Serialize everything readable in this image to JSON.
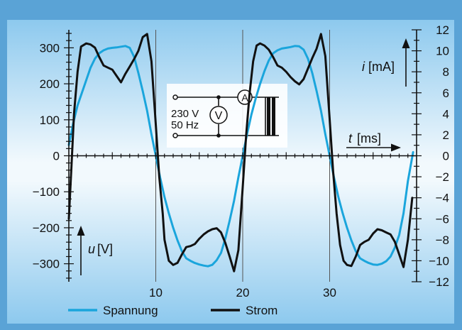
{
  "chart_data": {
    "type": "line",
    "x_axis": {
      "label_var": "t",
      "label_unit": "[ms]",
      "range": [
        0,
        40
      ],
      "ticks": [
        10,
        20,
        30
      ],
      "tick_labels": [
        "10",
        "20",
        "30"
      ]
    },
    "y_left": {
      "label_var": "u",
      "label_unit": "[V]",
      "range": [
        -350,
        350
      ],
      "ticks": [
        -300,
        -200,
        -100,
        0,
        100,
        200,
        300
      ],
      "tick_labels": [
        "−300",
        "−200",
        "−100",
        "0",
        "100",
        "200",
        "300"
      ]
    },
    "y_right": {
      "label_var": "i",
      "label_unit": "[mA]",
      "range": [
        -12,
        12
      ],
      "ticks": [
        -12,
        -10,
        -8,
        -6,
        -4,
        -2,
        0,
        2,
        4,
        6,
        8,
        10,
        12
      ],
      "tick_labels": [
        "−12",
        "−10",
        "−8",
        "−6",
        "−4",
        "−2",
        "0",
        "2",
        "4",
        "6",
        "8",
        "10",
        "12"
      ]
    },
    "grid": "vertical lines at 10, 20, 30 ms",
    "legend_position": "bottom-left",
    "series": [
      {
        "name": "Spannung",
        "axis": "left",
        "color": "#1aa5dc",
        "points": [
          [
            0,
            30
          ],
          [
            0.5,
            90
          ],
          [
            1,
            140
          ],
          [
            1.5,
            175
          ],
          [
            2,
            210
          ],
          [
            2.5,
            245
          ],
          [
            3,
            270
          ],
          [
            3.5,
            285
          ],
          [
            4,
            293
          ],
          [
            4.5,
            298
          ],
          [
            5,
            300
          ],
          [
            5.5,
            301
          ],
          [
            6,
            303
          ],
          [
            6.5,
            305
          ],
          [
            7,
            300
          ],
          [
            7.5,
            275
          ],
          [
            8,
            230
          ],
          [
            8.5,
            180
          ],
          [
            9,
            125
          ],
          [
            9.5,
            60
          ],
          [
            10,
            0
          ],
          [
            10.5,
            -60
          ],
          [
            11,
            -115
          ],
          [
            11.5,
            -160
          ],
          [
            12,
            -200
          ],
          [
            12.5,
            -235
          ],
          [
            13,
            -265
          ],
          [
            13.5,
            -285
          ],
          [
            14,
            -292
          ],
          [
            14.5,
            -298
          ],
          [
            15,
            -302
          ],
          [
            15.5,
            -305
          ],
          [
            16,
            -307
          ],
          [
            16.5,
            -303
          ],
          [
            17,
            -290
          ],
          [
            17.5,
            -270
          ],
          [
            18,
            -230
          ],
          [
            18.5,
            -180
          ],
          [
            19,
            -125
          ],
          [
            19.5,
            -60
          ],
          [
            20,
            0
          ],
          [
            20.5,
            60
          ],
          [
            21,
            115
          ],
          [
            21.5,
            160
          ],
          [
            22,
            200
          ],
          [
            22.5,
            235
          ],
          [
            23,
            265
          ],
          [
            23.5,
            285
          ],
          [
            24,
            293
          ],
          [
            24.5,
            298
          ],
          [
            25,
            300
          ],
          [
            25.5,
            302
          ],
          [
            26,
            305
          ],
          [
            26.5,
            304
          ],
          [
            27,
            295
          ],
          [
            27.5,
            270
          ],
          [
            28,
            230
          ],
          [
            28.5,
            180
          ],
          [
            29,
            125
          ],
          [
            29.5,
            60
          ],
          [
            30,
            0
          ],
          [
            30.5,
            -60
          ],
          [
            31,
            -115
          ],
          [
            31.5,
            -160
          ],
          [
            32,
            -200
          ],
          [
            32.5,
            -235
          ],
          [
            33,
            -265
          ],
          [
            33.5,
            -285
          ],
          [
            34,
            -292
          ],
          [
            34.5,
            -298
          ],
          [
            35,
            -302
          ],
          [
            35.5,
            -303
          ],
          [
            36,
            -300
          ],
          [
            36.5,
            -293
          ],
          [
            37,
            -280
          ],
          [
            37.5,
            -255
          ],
          [
            38,
            -220
          ],
          [
            38.5,
            -160
          ],
          [
            39,
            -70
          ],
          [
            39.6,
            10
          ]
        ]
      },
      {
        "name": "Strom",
        "axis": "right",
        "color": "#111111",
        "points": [
          [
            0,
            -6
          ],
          [
            0.3,
            -1
          ],
          [
            0.6,
            4
          ],
          [
            1,
            8
          ],
          [
            1.4,
            10.4
          ],
          [
            2,
            10.7
          ],
          [
            2.5,
            10.6
          ],
          [
            3,
            10.3
          ],
          [
            3.5,
            9.4
          ],
          [
            4,
            8.6
          ],
          [
            4.5,
            8.4
          ],
          [
            5,
            8.2
          ],
          [
            5.5,
            7.6
          ],
          [
            6,
            7.0
          ],
          [
            6.5,
            7.8
          ],
          [
            7,
            8.5
          ],
          [
            7.5,
            9.2
          ],
          [
            8,
            10
          ],
          [
            8.5,
            11.3
          ],
          [
            9,
            11.6
          ],
          [
            9.5,
            9
          ],
          [
            10,
            3
          ],
          [
            10.4,
            -2
          ],
          [
            10.8,
            -5.5
          ],
          [
            11,
            -8
          ],
          [
            11.5,
            -10
          ],
          [
            12,
            -10.4
          ],
          [
            12.5,
            -10.2
          ],
          [
            13,
            -9.4
          ],
          [
            13.5,
            -8.7
          ],
          [
            14,
            -8.6
          ],
          [
            14.5,
            -8.4
          ],
          [
            15,
            -7.9
          ],
          [
            15.5,
            -7.5
          ],
          [
            16,
            -7.2
          ],
          [
            16.5,
            -7.0
          ],
          [
            17,
            -6.9
          ],
          [
            17.5,
            -7.3
          ],
          [
            18,
            -8.3
          ],
          [
            18.5,
            -9.6
          ],
          [
            19,
            -11
          ],
          [
            19.5,
            -9
          ],
          [
            20,
            -3
          ],
          [
            20.4,
            2
          ],
          [
            20.8,
            6
          ],
          [
            21.2,
            9
          ],
          [
            21.6,
            10.5
          ],
          [
            22,
            10.7
          ],
          [
            22.5,
            10.5
          ],
          [
            23,
            10.1
          ],
          [
            23.5,
            9.4
          ],
          [
            24,
            8.6
          ],
          [
            24.5,
            8.4
          ],
          [
            25,
            8.0
          ],
          [
            25.5,
            7.5
          ],
          [
            26,
            7.1
          ],
          [
            26.5,
            6.8
          ],
          [
            27,
            7.3
          ],
          [
            27.5,
            8.3
          ],
          [
            28,
            9.3
          ],
          [
            28.5,
            10.2
          ],
          [
            29,
            11.6
          ],
          [
            29.5,
            9.5
          ],
          [
            30,
            3.5
          ],
          [
            30.4,
            -1.5
          ],
          [
            30.8,
            -5.5
          ],
          [
            31.2,
            -8.5
          ],
          [
            31.6,
            -10
          ],
          [
            32,
            -10.4
          ],
          [
            32.5,
            -10.5
          ],
          [
            33,
            -9.6
          ],
          [
            33.5,
            -8.5
          ],
          [
            34,
            -8.2
          ],
          [
            34.5,
            -8.0
          ],
          [
            35,
            -7.4
          ],
          [
            35.5,
            -7.0
          ],
          [
            36,
            -7.1
          ],
          [
            36.5,
            -7.3
          ],
          [
            37,
            -7.5
          ],
          [
            37.5,
            -8.2
          ],
          [
            38,
            -9.4
          ],
          [
            38.5,
            -10.6
          ],
          [
            39,
            -8
          ],
          [
            39.5,
            -4
          ]
        ]
      }
    ],
    "inset": {
      "voltage_label": "230 V",
      "frequency_label": "50 Hz",
      "voltmeter_symbol": "V",
      "ammeter_symbol": "A"
    }
  }
}
